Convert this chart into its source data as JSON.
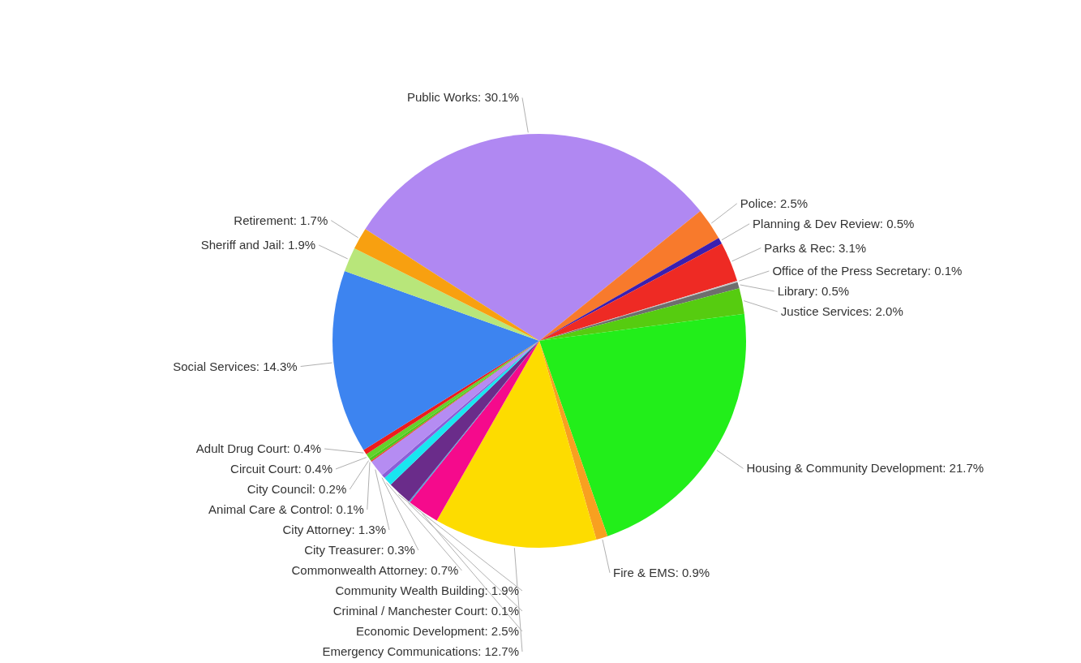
{
  "chart_data": {
    "type": "pie",
    "categories": [
      "Public Works",
      "Police",
      "Planning & Dev Review",
      "Parks & Rec",
      "Office of the Press Secretary",
      "Library",
      "Justice Services",
      "Housing & Community Development",
      "Fire & EMS",
      "Emergency Communications",
      "Economic Development",
      "Criminal / Manchester Court",
      "Community Wealth Building",
      "Commonwealth Attorney",
      "City Treasurer",
      "City Attorney",
      "Animal Care & Control",
      "City Council",
      "Circuit Court",
      "Adult Drug Court",
      "Social Services",
      "Sheriff and Jail",
      "Retirement"
    ],
    "values": [
      30.1,
      2.5,
      0.5,
      3.1,
      0.1,
      0.5,
      2.0,
      21.7,
      0.9,
      12.7,
      2.5,
      0.1,
      1.9,
      0.7,
      0.3,
      1.3,
      0.1,
      0.2,
      0.4,
      0.4,
      14.3,
      1.9,
      1.7
    ],
    "value_labels": [
      "30.1%",
      "2.5%",
      "0.5%",
      "3.1%",
      "0.1%",
      "0.5%",
      "2.0%",
      "21.7%",
      "0.9%",
      "12.7%",
      "2.5%",
      "0.1%",
      "1.9%",
      "0.7%",
      "0.3%",
      "1.3%",
      "0.1%",
      "0.2%",
      "0.4%",
      "0.4%",
      "14.3%",
      "1.9%",
      "1.7%"
    ],
    "colors": [
      "#b088f2",
      "#f87a2c",
      "#3a1fb0",
      "#ee2a24",
      "#c8c8c8",
      "#6e6e6e",
      "#56cc10",
      "#22ee1a",
      "#f8a020",
      "#fddc00",
      "#f50a8c",
      "#4aa3d8",
      "#6a2c8a",
      "#19e6f0",
      "#8a5fd8",
      "#b58cf2",
      "#e8402a",
      "#4cc51a",
      "#63d22b",
      "#ee1c1c",
      "#3d84f0",
      "#b8e67a",
      "#f8a010"
    ]
  }
}
